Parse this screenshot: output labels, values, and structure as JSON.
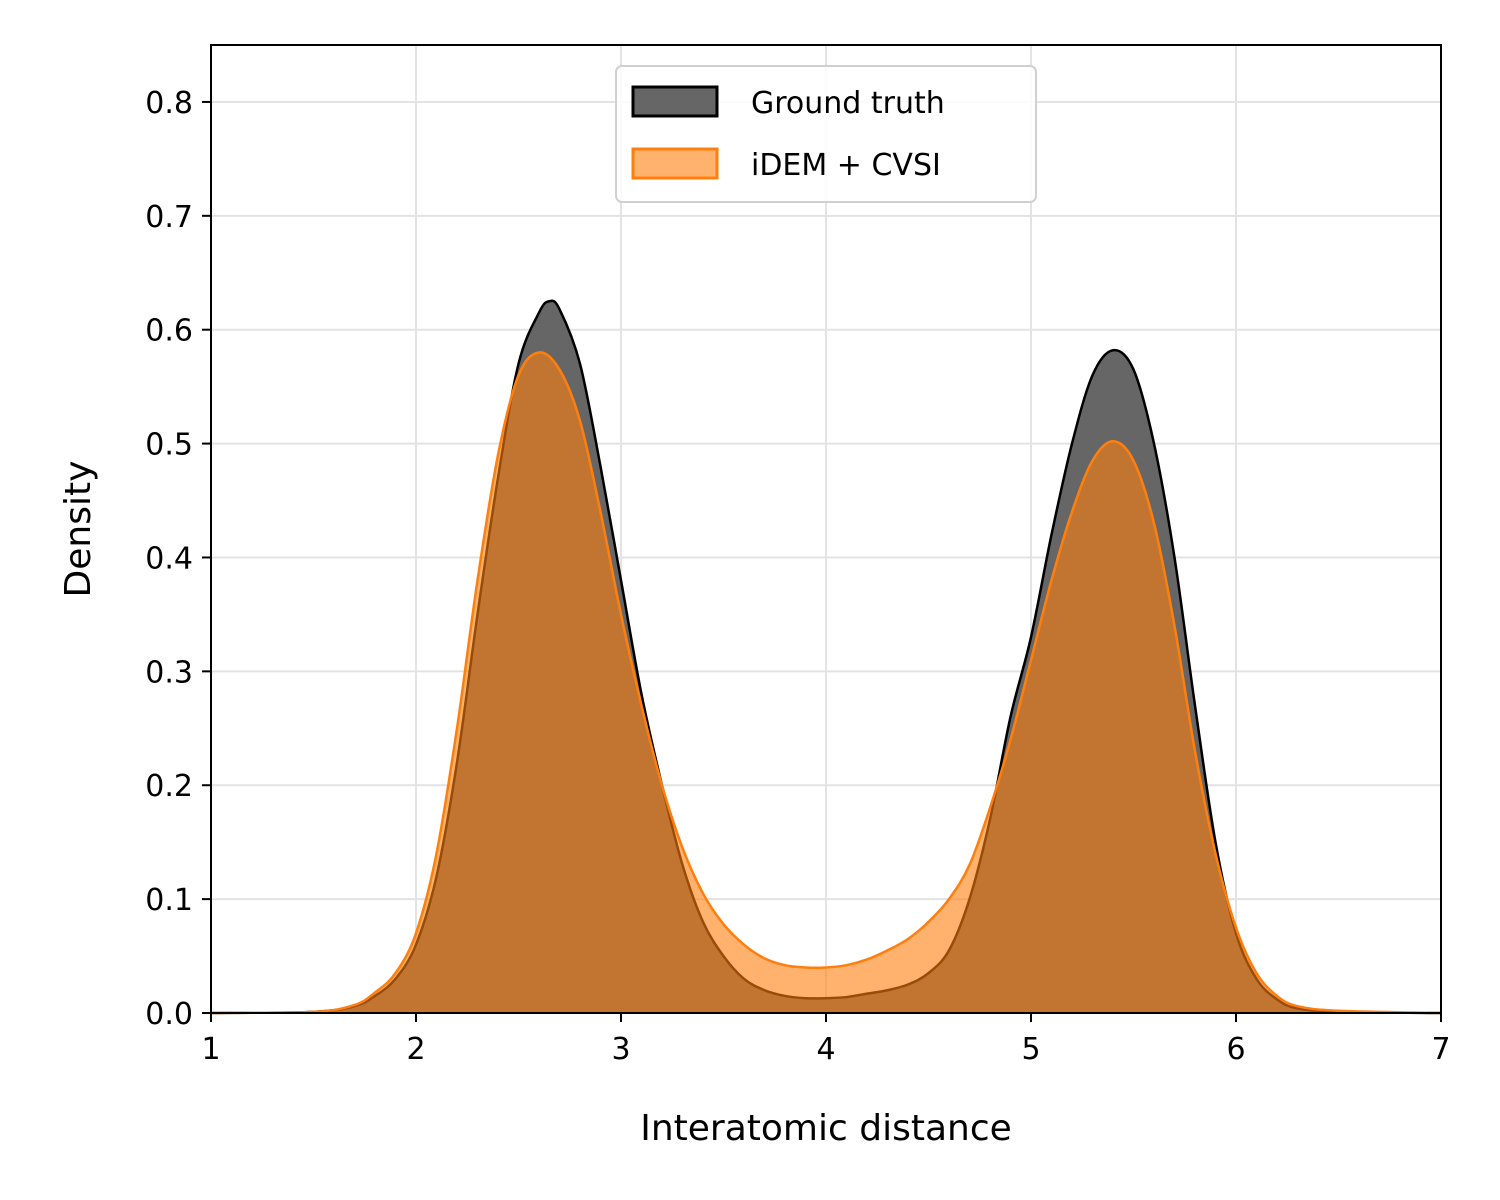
{
  "chart_data": {
    "type": "area",
    "title": "",
    "xlabel": "Interatomic distance",
    "ylabel": "Density",
    "xlim": [
      1,
      7
    ],
    "ylim": [
      0,
      0.85
    ],
    "xticks": [
      1,
      2,
      3,
      4,
      5,
      6,
      7
    ],
    "xtick_labels": [
      "1",
      "2",
      "3",
      "4",
      "5",
      "6",
      "7"
    ],
    "yticks": [
      0.0,
      0.1,
      0.2,
      0.3,
      0.4,
      0.5,
      0.6,
      0.7,
      0.8
    ],
    "ytick_labels": [
      "0.0",
      "0.1",
      "0.2",
      "0.3",
      "0.4",
      "0.5",
      "0.6",
      "0.7",
      "0.8"
    ],
    "grid": true,
    "legend_position": "top-center",
    "series": [
      {
        "name": "Ground truth",
        "fill_color": "#666666",
        "line_color": "#000000",
        "x": [
          1.0,
          1.5,
          1.7,
          1.8,
          1.9,
          2.0,
          2.1,
          2.2,
          2.3,
          2.4,
          2.5,
          2.6,
          2.65,
          2.7,
          2.8,
          2.9,
          3.0,
          3.1,
          3.2,
          3.3,
          3.4,
          3.5,
          3.6,
          3.7,
          3.8,
          3.9,
          4.0,
          4.1,
          4.2,
          4.3,
          4.4,
          4.5,
          4.6,
          4.7,
          4.8,
          4.9,
          5.0,
          5.1,
          5.2,
          5.3,
          5.4,
          5.5,
          5.6,
          5.7,
          5.8,
          5.9,
          6.0,
          6.1,
          6.2,
          6.3,
          6.5,
          7.0
        ],
        "y": [
          0.0,
          0.001,
          0.006,
          0.015,
          0.03,
          0.06,
          0.12,
          0.22,
          0.35,
          0.47,
          0.57,
          0.615,
          0.625,
          0.618,
          0.57,
          0.48,
          0.38,
          0.28,
          0.2,
          0.13,
          0.08,
          0.05,
          0.03,
          0.02,
          0.015,
          0.013,
          0.013,
          0.014,
          0.017,
          0.02,
          0.025,
          0.035,
          0.055,
          0.1,
          0.17,
          0.26,
          0.33,
          0.42,
          0.5,
          0.56,
          0.582,
          0.565,
          0.5,
          0.4,
          0.27,
          0.15,
          0.07,
          0.03,
          0.012,
          0.004,
          0.001,
          0.0
        ]
      },
      {
        "name": "iDEM + CVSI",
        "fill_color": "#ff7f0e",
        "line_color": "#ff7f0e",
        "x": [
          1.0,
          1.5,
          1.7,
          1.8,
          1.9,
          2.0,
          2.1,
          2.2,
          2.3,
          2.4,
          2.5,
          2.6,
          2.7,
          2.8,
          2.9,
          3.0,
          3.1,
          3.2,
          3.3,
          3.4,
          3.5,
          3.6,
          3.7,
          3.8,
          3.9,
          4.0,
          4.1,
          4.2,
          4.3,
          4.4,
          4.5,
          4.6,
          4.7,
          4.8,
          4.9,
          5.0,
          5.1,
          5.2,
          5.3,
          5.4,
          5.5,
          5.6,
          5.7,
          5.8,
          5.9,
          6.0,
          6.1,
          6.2,
          6.3,
          6.5,
          7.0
        ],
        "y": [
          0.0,
          0.001,
          0.007,
          0.018,
          0.035,
          0.07,
          0.14,
          0.25,
          0.38,
          0.49,
          0.56,
          0.58,
          0.565,
          0.52,
          0.44,
          0.35,
          0.27,
          0.2,
          0.145,
          0.105,
          0.078,
          0.06,
          0.048,
          0.042,
          0.04,
          0.04,
          0.042,
          0.047,
          0.055,
          0.065,
          0.08,
          0.1,
          0.13,
          0.18,
          0.24,
          0.31,
          0.38,
          0.44,
          0.485,
          0.502,
          0.485,
          0.43,
          0.34,
          0.23,
          0.14,
          0.075,
          0.035,
          0.015,
          0.006,
          0.002,
          0.0
        ]
      }
    ]
  }
}
